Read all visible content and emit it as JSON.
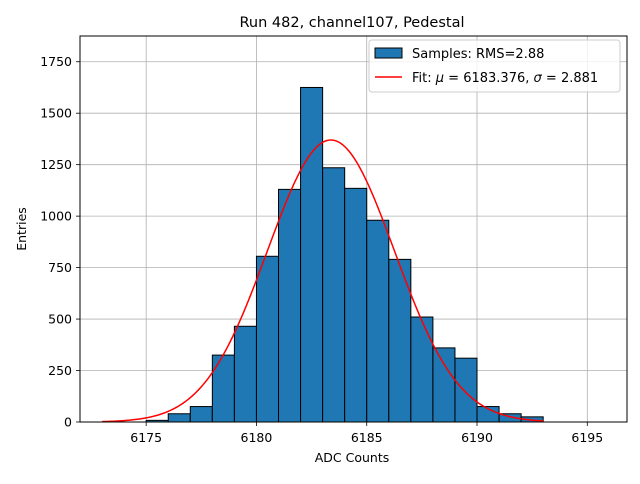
{
  "chart_data": {
    "type": "bar",
    "title": "Run 482, channel107, Pedestal",
    "xlabel": "ADC Counts",
    "ylabel": "Entries",
    "xlim": [
      6172.0,
      6196.8
    ],
    "ylim": [
      0,
      1875
    ],
    "x_ticks": [
      6175,
      6180,
      6185,
      6190,
      6195
    ],
    "y_ticks": [
      0,
      250,
      500,
      750,
      1000,
      1250,
      1500,
      1750
    ],
    "grid": true,
    "legend_position": "top-right",
    "histogram": {
      "name": "Samples: RMS=2.88",
      "color": "#1f77b4",
      "edge_color": "#000000",
      "bins": [
        {
          "x0": 6175,
          "x1": 6176,
          "count": 8
        },
        {
          "x0": 6176,
          "x1": 6177,
          "count": 40
        },
        {
          "x0": 6177,
          "x1": 6178,
          "count": 75
        },
        {
          "x0": 6178,
          "x1": 6179,
          "count": 325
        },
        {
          "x0": 6179,
          "x1": 6180,
          "count": 465
        },
        {
          "x0": 6180,
          "x1": 6181,
          "count": 805
        },
        {
          "x0": 6181,
          "x1": 6182,
          "count": 1130
        },
        {
          "x0": 6182,
          "x1": 6183,
          "count": 1625
        },
        {
          "x0": 6183,
          "x1": 6184,
          "count": 1235
        },
        {
          "x0": 6184,
          "x1": 6185,
          "count": 1135
        },
        {
          "x0": 6185,
          "x1": 6186,
          "count": 980
        },
        {
          "x0": 6186,
          "x1": 6187,
          "count": 790
        },
        {
          "x0": 6187,
          "x1": 6188,
          "count": 510
        },
        {
          "x0": 6188,
          "x1": 6189,
          "count": 360
        },
        {
          "x0": 6189,
          "x1": 6190,
          "count": 310
        },
        {
          "x0": 6190,
          "x1": 6191,
          "count": 75
        },
        {
          "x0": 6191,
          "x1": 6192,
          "count": 40
        },
        {
          "x0": 6192,
          "x1": 6193,
          "count": 25
        }
      ]
    },
    "fit": {
      "name_prefix": "Fit: ",
      "mu_symbol": "μ",
      "sigma_symbol": "σ",
      "mu": 6183.376,
      "sigma": 2.881,
      "mu_text": "6183.376",
      "sigma_text": "2.881",
      "amplitude": 1370,
      "x_range": [
        6173,
        6193
      ],
      "color": "#ff0000"
    }
  }
}
